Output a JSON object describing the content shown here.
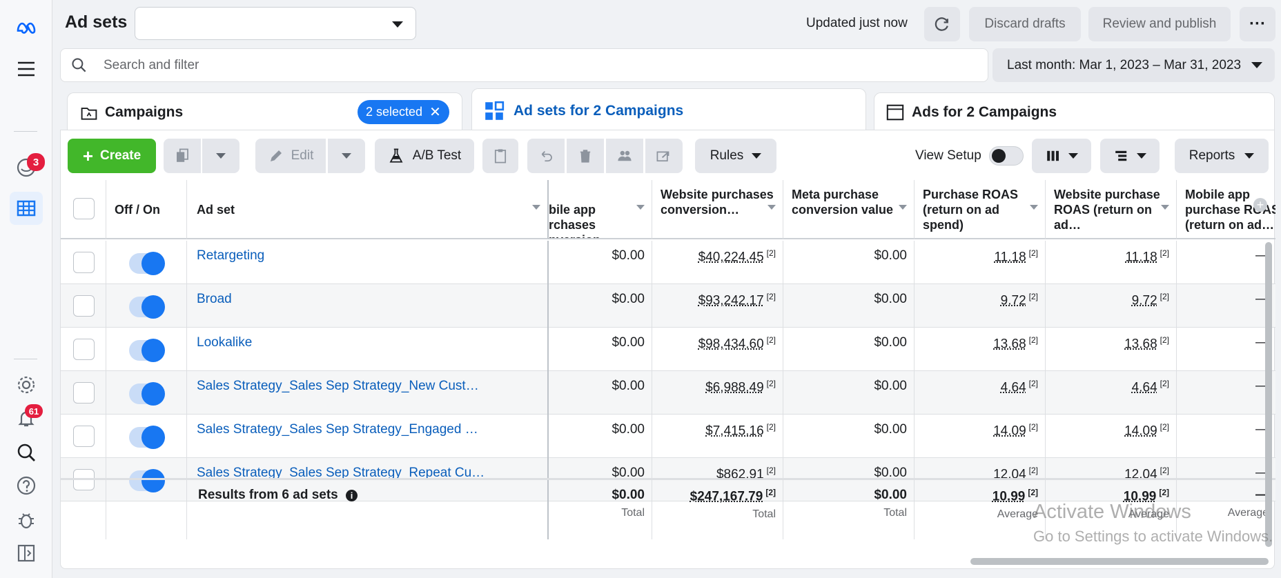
{
  "header": {
    "title": "Ad sets",
    "account_value": "",
    "updated": "Updated just now",
    "discard": "Discard drafts",
    "review": "Review and publish"
  },
  "search": {
    "placeholder": "Search and filter"
  },
  "date_range": "Last month: Mar 1, 2023 – Mar 31, 2023",
  "tabs": {
    "campaigns": "Campaigns",
    "selected": "2 selected",
    "adsets": "Ad sets for 2 Campaigns",
    "ads": "Ads for 2 Campaigns"
  },
  "toolbar": {
    "create": "Create",
    "edit": "Edit",
    "ab_test": "A/B Test",
    "rules": "Rules",
    "view_setup": "View Setup",
    "reports": "Reports"
  },
  "rail": {
    "inbox_badge": "3",
    "notif_badge": "61"
  },
  "columns": {
    "off_on": "Off / On",
    "ad_set": "Ad set",
    "mobile_purch": "Mobile app purchases conversion…",
    "mobile_purch_visible": "bile app\nrchases\nnversion…",
    "web_purch": "Website purchases conversion…",
    "meta_purch": "Meta purchase conversion value",
    "roas": "Purchase ROAS (return on ad spend)",
    "web_roas": "Website purchase ROAS (return on ad…",
    "mob_roas": "Mobile app purchase ROAS (return on ad…"
  },
  "rows": [
    {
      "name": "Retargeting",
      "mobile": "$0.00",
      "web": "$40,224.45",
      "meta": "$0.00",
      "roas": "11.18",
      "web_roas": "11.18",
      "mob_roas": "—"
    },
    {
      "name": "Broad",
      "mobile": "$0.00",
      "web": "$93,242.17",
      "meta": "$0.00",
      "roas": "9.72",
      "web_roas": "9.72",
      "mob_roas": "—"
    },
    {
      "name": "Lookalike",
      "mobile": "$0.00",
      "web": "$98,434.60",
      "meta": "$0.00",
      "roas": "13.68",
      "web_roas": "13.68",
      "mob_roas": "—"
    },
    {
      "name": "Sales Strategy_Sales Sep Strategy_New Cust…",
      "mobile": "$0.00",
      "web": "$6,988.49",
      "meta": "$0.00",
      "roas": "4.64",
      "web_roas": "4.64",
      "mob_roas": "—"
    },
    {
      "name": "Sales Strategy_Sales Sep Strategy_Engaged …",
      "mobile": "$0.00",
      "web": "$7,415.16",
      "meta": "$0.00",
      "roas": "14.09",
      "web_roas": "14.09",
      "mob_roas": "—"
    },
    {
      "name": "Sales Strategy_Sales Sep Strategy_Repeat Cu…",
      "mobile": "$0.00",
      "web": "$862.91",
      "meta": "$0.00",
      "roas": "12.04",
      "web_roas": "12.04",
      "mob_roas": "—"
    }
  ],
  "note_marker": "[2]",
  "total": {
    "label": "Results from 6 ad sets",
    "mobile": "$0.00",
    "mobile_sub": "Total",
    "web": "$247,167.79",
    "web_sub": "Total",
    "meta": "$0.00",
    "meta_sub": "Total",
    "roas": "10.99",
    "roas_sub": "Average",
    "web_roas": "10.99",
    "web_roas_sub": "Average",
    "mob_roas": "—",
    "mob_roas_sub": "Average"
  },
  "watermark": {
    "line1": "Activate Windows",
    "line2": "Go to Settings to activate Windows."
  }
}
